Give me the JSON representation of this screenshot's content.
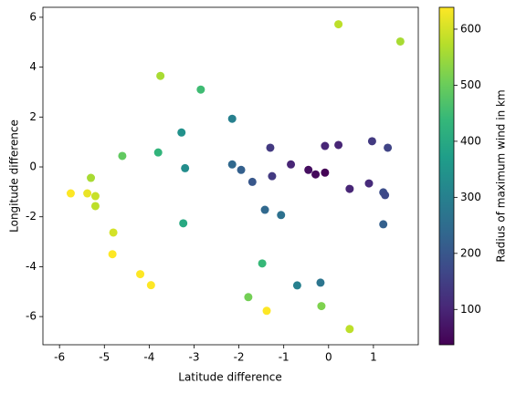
{
  "chart_data": {
    "type": "scatter",
    "x_label": "Latitude difference",
    "y_label": "Longitude difference",
    "colorbar_label": "Radius of maximum wind in km",
    "colormap": "viridis",
    "xlim": [
      -6.37,
      2.0
    ],
    "ylim": [
      -7.13,
      6.4
    ],
    "clim": [
      37,
      639
    ],
    "xticks": [
      -6,
      -5,
      -4,
      -3,
      -2,
      -1,
      0,
      1
    ],
    "yticks": [
      -6,
      -4,
      -2,
      0,
      2,
      4,
      6
    ],
    "cticks": [
      100,
      200,
      300,
      400,
      500,
      600
    ],
    "x": [
      0.22,
      1.6,
      -3.75,
      -2.85,
      -2.15,
      -3.28,
      -4.6,
      -3.8,
      -3.2,
      -2.15,
      -1.95,
      -1.7,
      -1.3,
      -1.26,
      -0.84,
      -0.45,
      -0.29,
      -0.08,
      -0.08,
      0.22,
      0.97,
      1.32,
      0.47,
      0.9,
      1.22,
      1.26,
      1.22,
      -1.42,
      -1.06,
      -3.24,
      -1.48,
      -0.18,
      -0.7,
      -1.79,
      -0.16,
      -1.38,
      0.47,
      -5.75,
      -5.38,
      -5.3,
      -5.2,
      -5.2,
      -4.8,
      -4.82,
      -4.2,
      -3.96
    ],
    "y": [
      5.72,
      5.03,
      3.65,
      3.1,
      1.93,
      1.38,
      0.44,
      0.58,
      -0.05,
      0.1,
      -0.12,
      -0.6,
      0.77,
      -0.37,
      0.1,
      -0.12,
      -0.3,
      -0.23,
      0.84,
      0.88,
      1.03,
      0.77,
      -0.88,
      -0.66,
      -1.02,
      -1.13,
      -2.3,
      -1.72,
      -1.93,
      -2.26,
      -3.87,
      -4.64,
      -4.75,
      -5.22,
      -5.58,
      -5.77,
      -6.5,
      -1.06,
      -1.06,
      -0.44,
      -1.17,
      -1.57,
      -2.63,
      -3.5,
      -4.3,
      -4.74
    ],
    "c": [
      580,
      560,
      560,
      450,
      300,
      340,
      490,
      430,
      330,
      240,
      220,
      200,
      140,
      140,
      100,
      60,
      50,
      40,
      100,
      100,
      140,
      160,
      100,
      110,
      180,
      170,
      220,
      240,
      260,
      400,
      440,
      270,
      300,
      510,
      520,
      650,
      580,
      650,
      620,
      560,
      590,
      580,
      600,
      650,
      650,
      650
    ]
  }
}
